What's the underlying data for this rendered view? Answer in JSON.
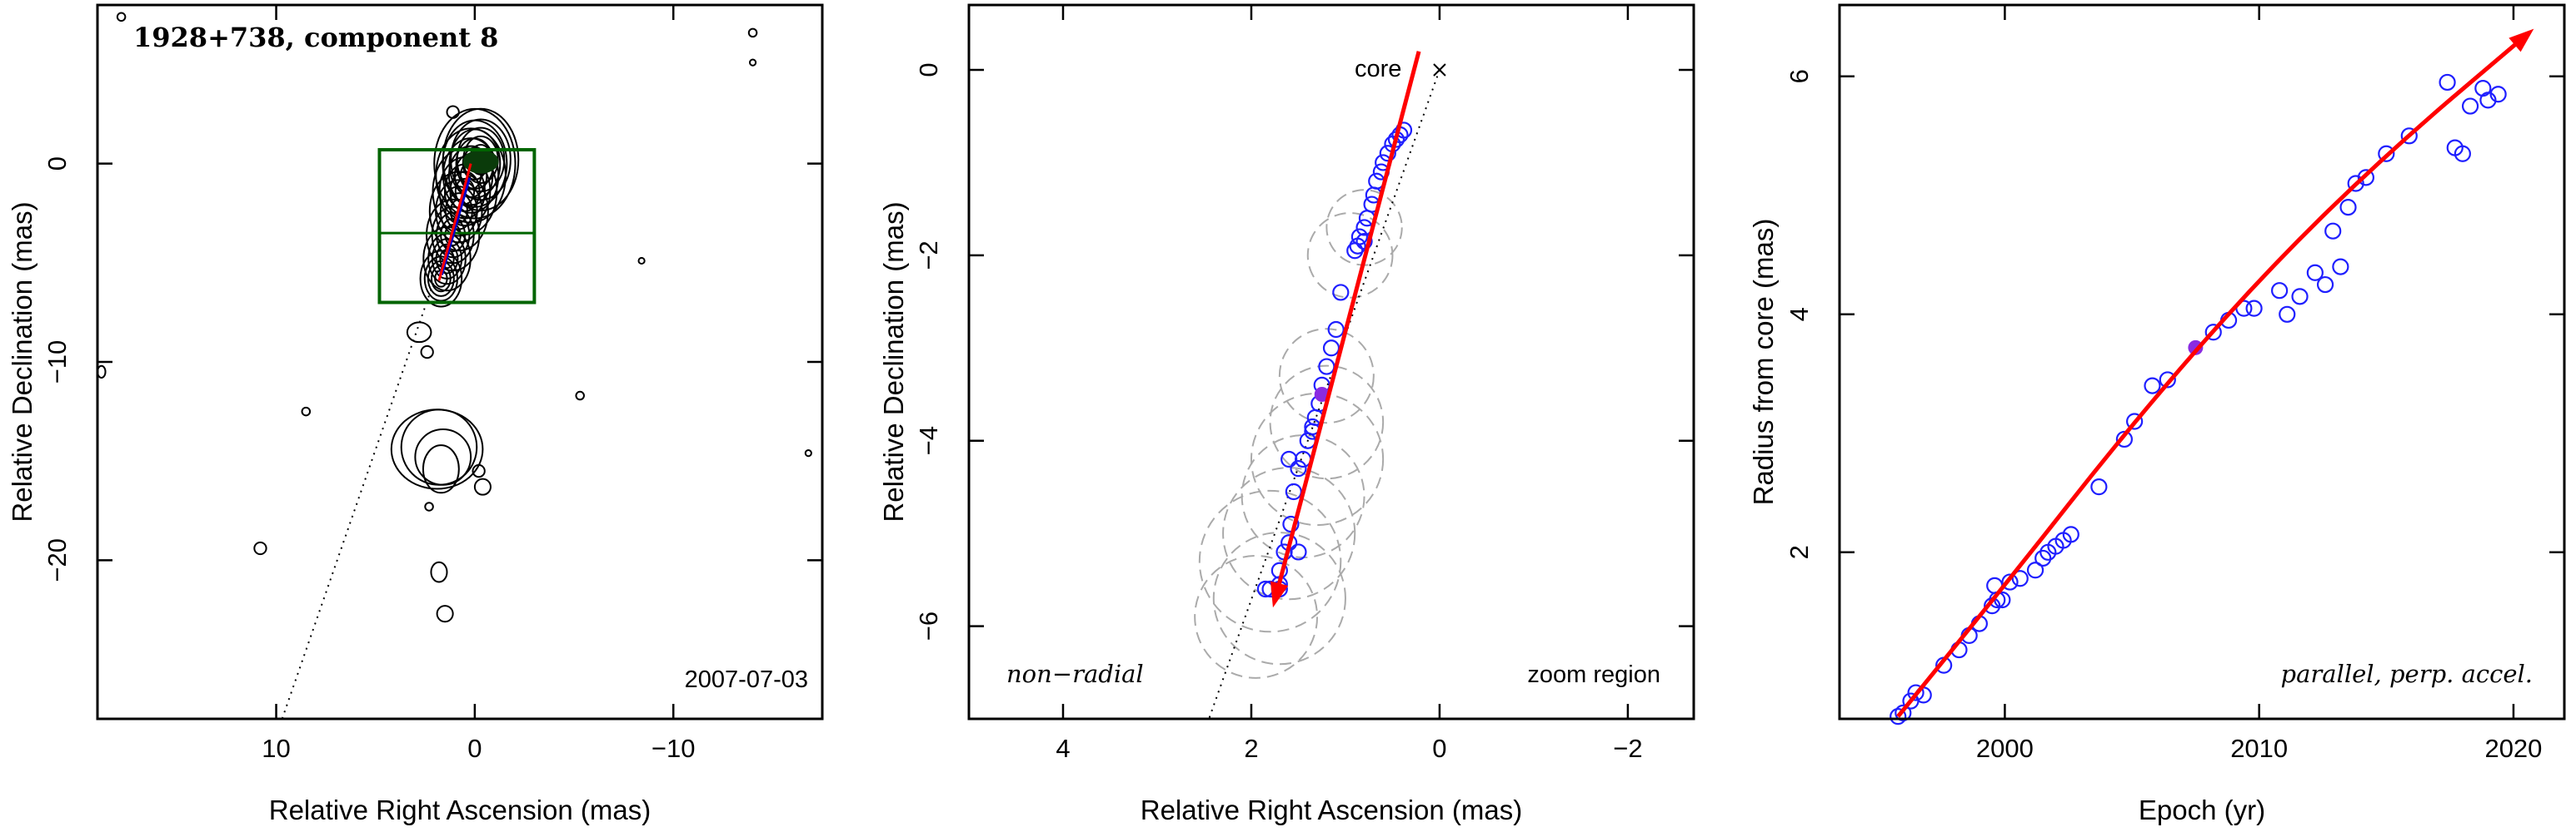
{
  "chart_data": [
    {
      "type": "scatter",
      "panel": "left",
      "title": "1928+738, component 8",
      "xlabel": "Relative Right Ascension (mas)",
      "ylabel": "Relative Declination (mas)",
      "xlim": [
        19,
        -17.5
      ],
      "ylim": [
        -28,
        8
      ],
      "xticks": [
        10,
        0,
        -10
      ],
      "xtick_labels": [
        "10",
        "0",
        "−10"
      ],
      "yticks": [
        0,
        -10,
        -20
      ],
      "ytick_labels": [
        "0",
        "−10",
        "−20"
      ],
      "annotation_bottom_right": "2007-07-03",
      "contour_color": "#000000",
      "jet_line_color": "#000000",
      "box_color": "#006400",
      "arrow_color": "#ff0000",
      "fit_color": "#0000cc",
      "zoom_box": {
        "x": [
          4.8,
          -3.0
        ],
        "y": [
          0.7,
          -7.0
        ],
        "divider_y": -3.5
      },
      "jet_direction_line": [
        [
          0,
          0
        ],
        [
          9.7,
          -28
        ]
      ]
    },
    {
      "type": "scatter",
      "panel": "middle",
      "xlabel": "Relative Right Ascension (mas)",
      "ylabel": "Relative Declination (mas)",
      "xlim": [
        5.0,
        -2.7
      ],
      "ylim": [
        -7.0,
        0.7
      ],
      "xticks": [
        4,
        2,
        0,
        -2
      ],
      "xtick_labels": [
        "4",
        "2",
        "0",
        "−2"
      ],
      "yticks": [
        0,
        -2,
        -4,
        -6
      ],
      "ytick_labels": [
        "0",
        "−2",
        "−4",
        "−6"
      ],
      "core_label": "core",
      "annotation_bottom_left": "non−radial",
      "annotation_bottom_right": "zoom region",
      "point_color": "#1f1fff",
      "highlight_color": "#8a2be2",
      "arrow_color": "#ff0000",
      "circle_color": "#aaaaaa",
      "points": [
        [
          0.38,
          -0.65
        ],
        [
          0.42,
          -0.7
        ],
        [
          0.46,
          -0.75
        ],
        [
          0.5,
          -0.8
        ],
        [
          0.55,
          -0.9
        ],
        [
          0.6,
          -1.0
        ],
        [
          0.62,
          -1.1
        ],
        [
          0.67,
          -1.2
        ],
        [
          0.7,
          -1.35
        ],
        [
          0.72,
          -1.45
        ],
        [
          0.77,
          -1.6
        ],
        [
          0.8,
          -1.7
        ],
        [
          0.85,
          -1.8
        ],
        [
          0.87,
          -1.9
        ],
        [
          0.9,
          -1.95
        ],
        [
          0.8,
          -1.85
        ],
        [
          1.05,
          -2.4
        ],
        [
          1.1,
          -2.8
        ],
        [
          1.15,
          -3.0
        ],
        [
          1.2,
          -3.2
        ],
        [
          1.25,
          -3.4
        ],
        [
          1.28,
          -3.6
        ],
        [
          1.32,
          -3.75
        ],
        [
          1.35,
          -3.85
        ],
        [
          1.4,
          -4.0
        ],
        [
          1.45,
          -4.2
        ],
        [
          1.5,
          -4.3
        ],
        [
          1.55,
          -4.55
        ],
        [
          1.58,
          -4.9
        ],
        [
          1.6,
          -5.1
        ],
        [
          1.65,
          -5.2
        ],
        [
          1.7,
          -5.4
        ],
        [
          1.7,
          -5.55
        ],
        [
          1.8,
          -5.6
        ],
        [
          1.85,
          -5.6
        ],
        [
          1.6,
          -4.2
        ],
        [
          1.35,
          -3.9
        ],
        [
          1.5,
          -5.2
        ],
        [
          1.7,
          -5.6
        ]
      ],
      "highlight_point": [
        1.25,
        -3.5
      ],
      "arrow": {
        "from": [
          0.22,
          0.2
        ],
        "to": [
          1.77,
          -5.8
        ]
      },
      "radial_line": [
        [
          0,
          0
        ],
        [
          2.45,
          -7.0
        ]
      ],
      "component_circles": [
        [
          0.8,
          -1.7,
          0.4
        ],
        [
          0.95,
          -2.0,
          0.45
        ],
        [
          1.2,
          -3.3,
          0.5
        ],
        [
          1.2,
          -3.8,
          0.6
        ],
        [
          1.3,
          -4.2,
          0.7
        ],
        [
          1.45,
          -4.6,
          0.65
        ],
        [
          1.6,
          -5.0,
          0.7
        ],
        [
          1.8,
          -5.3,
          0.75
        ],
        [
          1.7,
          -5.7,
          0.7
        ],
        [
          1.95,
          -5.9,
          0.65
        ]
      ]
    },
    {
      "type": "scatter",
      "panel": "right",
      "xlabel": "Epoch (yr)",
      "ylabel": "Radius from core (mas)",
      "xlim": [
        1993.5,
        2022
      ],
      "ylim": [
        0.6,
        6.6
      ],
      "xticks": [
        2000,
        2010,
        2020
      ],
      "xtick_labels": [
        "2000",
        "2010",
        "2020"
      ],
      "yticks": [
        2,
        4,
        6
      ],
      "ytick_labels": [
        "2",
        "4",
        "6"
      ],
      "annotation_bottom_right": "parallel, perp. accel.",
      "point_color": "#1f1fff",
      "highlight_color": "#8a2be2",
      "fit_color": "#ff0000",
      "points": [
        [
          1995.8,
          0.62
        ],
        [
          1996.0,
          0.65
        ],
        [
          1996.3,
          0.75
        ],
        [
          1996.5,
          0.82
        ],
        [
          1996.8,
          0.8
        ],
        [
          1997.6,
          1.05
        ],
        [
          1998.2,
          1.18
        ],
        [
          1998.6,
          1.3
        ],
        [
          1999.0,
          1.4
        ],
        [
          1999.5,
          1.55
        ],
        [
          1999.7,
          1.6
        ],
        [
          1999.6,
          1.72
        ],
        [
          1999.9,
          1.6
        ],
        [
          2000.2,
          1.75
        ],
        [
          2000.6,
          1.78
        ],
        [
          2001.2,
          1.85
        ],
        [
          2001.5,
          1.95
        ],
        [
          2001.7,
          2.0
        ],
        [
          2002.0,
          2.05
        ],
        [
          2002.3,
          2.1
        ],
        [
          2002.6,
          2.15
        ],
        [
          2003.7,
          2.55
        ],
        [
          2004.7,
          2.95
        ],
        [
          2005.1,
          3.1
        ],
        [
          2005.8,
          3.4
        ],
        [
          2006.4,
          3.45
        ],
        [
          2008.2,
          3.85
        ],
        [
          2008.8,
          3.95
        ],
        [
          2009.4,
          4.05
        ],
        [
          2009.8,
          4.05
        ],
        [
          2010.8,
          4.2
        ],
        [
          2011.1,
          4.0
        ],
        [
          2011.6,
          4.15
        ],
        [
          2012.2,
          4.35
        ],
        [
          2012.6,
          4.25
        ],
        [
          2012.9,
          4.7
        ],
        [
          2013.2,
          4.4
        ],
        [
          2013.5,
          4.9
        ],
        [
          2013.8,
          5.1
        ],
        [
          2014.2,
          5.15
        ],
        [
          2015.0,
          5.35
        ],
        [
          2015.9,
          5.5
        ],
        [
          2017.4,
          5.95
        ],
        [
          2017.7,
          5.4
        ],
        [
          2018.0,
          5.35
        ],
        [
          2018.3,
          5.75
        ],
        [
          2018.8,
          5.9
        ],
        [
          2019.0,
          5.8
        ],
        [
          2019.4,
          5.85
        ]
      ],
      "highlight_point": [
        2007.5,
        3.72
      ],
      "fit_curve": [
        [
          1995.8,
          0.62
        ],
        [
          2000,
          1.72
        ],
        [
          2005,
          3.08
        ],
        [
          2010,
          4.3
        ],
        [
          2015,
          5.35
        ],
        [
          2020.8,
          6.4
        ]
      ]
    }
  ]
}
